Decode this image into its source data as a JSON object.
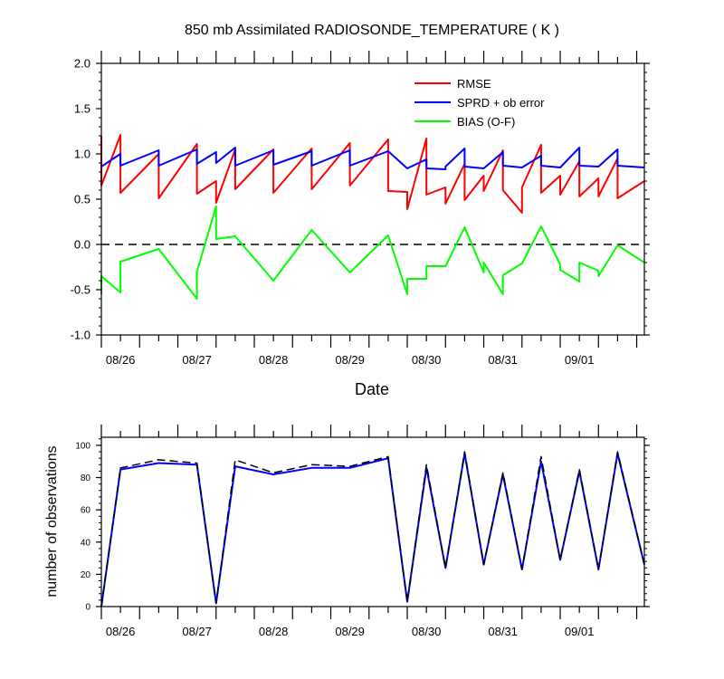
{
  "chart_data": [
    {
      "type": "line",
      "title": "850 mb Assimilated RADIOSONDE_TEMPERATURE ( K )",
      "xlabel": "Date",
      "ylabel": "",
      "ylim": [
        -1.0,
        2.0
      ],
      "xlim": [
        0,
        7.1
      ],
      "y_ticks": [
        "-1.0",
        "-0.5",
        "0.0",
        "0.5",
        "1.0",
        "1.5",
        "2.0"
      ],
      "x_ticks": [
        "08/26",
        "08/27",
        "08/28",
        "08/29",
        "08/30",
        "08/31",
        "09/01"
      ],
      "zero_line": "dashed",
      "legend_position": "top-right",
      "series": [
        {
          "name": "RMSE",
          "color": "#ff0000",
          "x": [
            0,
            0,
            0.25,
            0.25,
            0.75,
            0.75,
            1.25,
            1.25,
            1.5,
            1.5,
            1.75,
            1.75,
            2.25,
            2.25,
            2.75,
            2.75,
            3.25,
            3.25,
            3.75,
            3.75,
            4.0,
            4.0,
            4.25,
            4.25,
            4.5,
            4.5,
            4.75,
            4.75,
            5.0,
            5.0,
            5.25,
            5.25,
            5.5,
            5.5,
            5.75,
            5.75,
            6.0,
            6.0,
            6.25,
            6.25,
            6.5,
            6.5,
            6.75,
            6.75,
            7.1
          ],
          "y": [
            1.2,
            0.65,
            1.21,
            0.57,
            1.0,
            0.51,
            1.11,
            0.56,
            0.7,
            0.46,
            1.05,
            0.61,
            1.05,
            0.57,
            1.06,
            0.61,
            1.12,
            0.65,
            1.16,
            0.59,
            0.58,
            0.39,
            1.17,
            0.55,
            0.63,
            0.45,
            0.89,
            0.49,
            0.76,
            0.59,
            1.04,
            0.6,
            0.35,
            0.63,
            1.1,
            0.57,
            0.76,
            0.55,
            0.92,
            0.53,
            0.73,
            0.53,
            0.95,
            0.51,
            0.7
          ]
        },
        {
          "name": "SPRD + ob error",
          "color": "#0000ff",
          "x": [
            0,
            0.25,
            0.25,
            0.75,
            0.75,
            1.25,
            1.25,
            1.5,
            1.5,
            1.75,
            1.75,
            2.25,
            2.25,
            2.75,
            2.75,
            3.25,
            3.25,
            3.75,
            4.0,
            4.25,
            4.25,
            4.5,
            4.5,
            4.75,
            4.75,
            5.0,
            5.25,
            5.25,
            5.5,
            5.75,
            5.75,
            6.0,
            6.25,
            6.25,
            6.5,
            6.75,
            6.75,
            7.1
          ],
          "y": [
            0.86,
            1.0,
            0.87,
            1.04,
            0.87,
            1.05,
            0.89,
            1.02,
            0.9,
            1.07,
            0.87,
            1.04,
            0.88,
            1.03,
            0.87,
            1.04,
            0.87,
            1.03,
            0.84,
            0.94,
            0.84,
            0.83,
            0.86,
            1.06,
            0.86,
            0.84,
            1.02,
            0.87,
            0.85,
            0.98,
            0.87,
            0.85,
            1.07,
            0.87,
            0.86,
            1.05,
            0.87,
            0.85
          ]
        },
        {
          "name": "BIAS (O-F)",
          "color": "#00ff00",
          "x": [
            0,
            0,
            0.25,
            0.25,
            0.75,
            1.25,
            1.25,
            1.5,
            1.5,
            1.75,
            2.25,
            2.75,
            3.25,
            3.75,
            4.0,
            4.0,
            4.25,
            4.25,
            4.5,
            4.75,
            5.0,
            5.0,
            5.25,
            5.25,
            5.5,
            5.75,
            6.0,
            6.0,
            6.25,
            6.25,
            6.5,
            6.5,
            6.75,
            7.1
          ],
          "y": [
            -0.55,
            -0.35,
            -0.53,
            -0.19,
            -0.05,
            -0.6,
            -0.3,
            0.42,
            0.06,
            0.09,
            -0.4,
            0.16,
            -0.31,
            0.1,
            -0.55,
            -0.38,
            -0.38,
            -0.24,
            -0.24,
            0.19,
            -0.31,
            -0.2,
            -0.55,
            -0.34,
            -0.21,
            0.2,
            -0.22,
            -0.28,
            -0.41,
            -0.2,
            -0.29,
            -0.35,
            -0.01,
            -0.2
          ]
        }
      ]
    },
    {
      "type": "line",
      "title": "",
      "xlabel": "",
      "ylabel": "number of observations",
      "ylim": [
        0,
        105
      ],
      "xlim": [
        0,
        7.1
      ],
      "y_ticks": [
        "0",
        "20",
        "40",
        "60",
        "80",
        "100"
      ],
      "x_ticks": [
        "08/26",
        "08/27",
        "08/28",
        "08/29",
        "08/30",
        "08/31",
        "09/01"
      ],
      "series": [
        {
          "style": "solid",
          "color": "#0000ff",
          "x": [
            0,
            0.25,
            0.75,
            1.25,
            1.5,
            1.75,
            2.25,
            2.75,
            3.25,
            3.75,
            4.0,
            4.25,
            4.5,
            4.75,
            5.0,
            5.25,
            5.5,
            5.75,
            6.0,
            6.25,
            6.5,
            6.75,
            7.1
          ],
          "y": [
            0,
            85,
            89,
            88,
            2,
            87,
            82,
            86,
            86,
            92,
            3,
            86,
            24,
            95,
            26,
            82,
            23,
            90,
            29,
            84,
            23,
            95,
            26
          ]
        },
        {
          "style": "dashed",
          "color": "#000000",
          "x": [
            0,
            0.25,
            0.75,
            1.25,
            1.5,
            1.75,
            2.25,
            2.75,
            3.25,
            3.75,
            4.0,
            4.25,
            4.5,
            4.75,
            5.0,
            5.25,
            5.5,
            5.75,
            6.0,
            6.25,
            6.5,
            6.75,
            7.1
          ],
          "y": [
            0,
            86,
            91,
            89,
            2,
            91,
            83,
            88,
            87,
            93,
            3,
            88,
            24,
            96,
            26,
            83,
            23,
            93,
            29,
            85,
            23,
            96,
            26
          ]
        }
      ]
    }
  ]
}
